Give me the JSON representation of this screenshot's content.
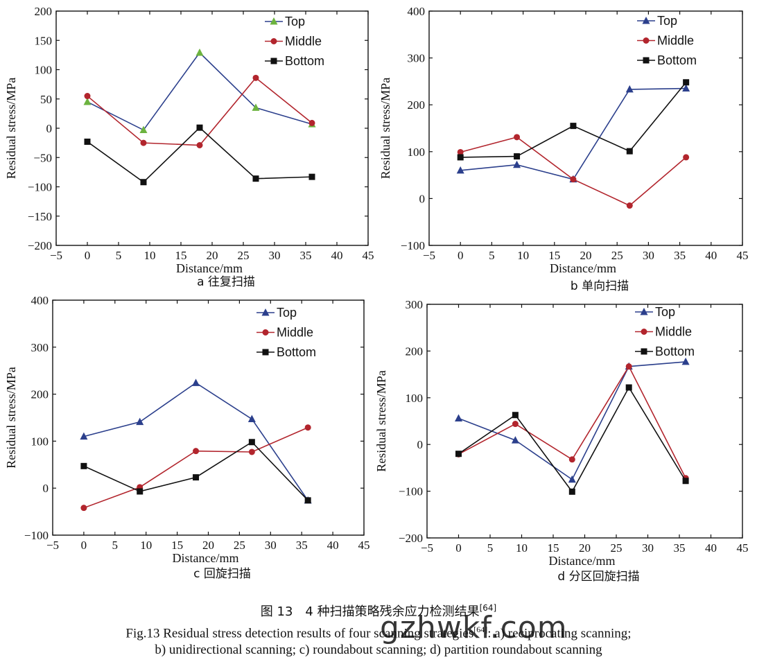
{
  "figure_caption_cn_main": "图 13　4 种扫描策略残余应力检测结果",
  "figure_caption_cn_ref": "[64]",
  "figure_caption_en_line1": "Fig.13 Residual stress detection results of four scanning strategies",
  "figure_caption_en_ref": "[64]",
  "figure_caption_en_line1_rest": ": a) reciprocating scanning;",
  "figure_caption_en_line2": "b) unidirectional scanning; c) roundabout scanning; d) partition roundabout scanning",
  "watermark": "gzhwkf.com",
  "colors": {
    "top": "#2b3f8c",
    "middle": "#b2252d",
    "bottom": "#111111",
    "top_a_marker": "#6cb33f"
  },
  "chart_data": [
    {
      "id": "a",
      "type": "line",
      "caption": "a  往复扫描",
      "xlabel": "Distance/mm",
      "ylabel": "Residual stress/MPa",
      "xlim": [
        -5,
        45
      ],
      "ylim": [
        -200,
        200
      ],
      "xticks": [
        -5,
        0,
        5,
        10,
        15,
        20,
        25,
        30,
        35,
        40,
        45
      ],
      "yticks": [
        -200,
        -150,
        -100,
        -50,
        0,
        50,
        100,
        150,
        200
      ],
      "legend_position": "top-right",
      "series": [
        {
          "name": "Top",
          "marker": "triangle",
          "color": "#2b3f8c",
          "marker_color": "#6cb33f",
          "x": [
            0,
            9,
            18,
            27,
            36
          ],
          "y": [
            45,
            -3,
            129,
            35,
            7
          ]
        },
        {
          "name": "Middle",
          "marker": "circle",
          "color": "#b2252d",
          "x": [
            0,
            9,
            18,
            27,
            36
          ],
          "y": [
            55,
            -25,
            -29,
            86,
            9
          ]
        },
        {
          "name": "Bottom",
          "marker": "square",
          "color": "#111111",
          "x": [
            0,
            9,
            18,
            27,
            36
          ],
          "y": [
            -23,
            -92,
            1,
            -86,
            -83
          ]
        }
      ]
    },
    {
      "id": "b",
      "type": "line",
      "caption": "b  单向扫描",
      "xlabel": "Distance/mm",
      "ylabel": "Residual stress/MPa",
      "xlim": [
        -5,
        45
      ],
      "ylim": [
        -100,
        400
      ],
      "xticks": [
        -5,
        0,
        5,
        10,
        15,
        20,
        25,
        30,
        35,
        40,
        45
      ],
      "yticks": [
        -100,
        0,
        100,
        200,
        300,
        400
      ],
      "legend_position": "top-right",
      "series": [
        {
          "name": "Top",
          "marker": "triangle",
          "color": "#2b3f8c",
          "marker_color": "#2b3f8c",
          "x": [
            0,
            9,
            18,
            27,
            36
          ],
          "y": [
            60,
            72,
            41,
            233,
            235
          ]
        },
        {
          "name": "Middle",
          "marker": "circle",
          "color": "#b2252d",
          "x": [
            0,
            9,
            18,
            27,
            36
          ],
          "y": [
            99,
            131,
            41,
            -15,
            88
          ]
        },
        {
          "name": "Bottom",
          "marker": "square",
          "color": "#111111",
          "x": [
            0,
            9,
            18,
            27,
            36
          ],
          "y": [
            88,
            90,
            155,
            101,
            248
          ]
        }
      ]
    },
    {
      "id": "c",
      "type": "line",
      "caption": "c  回旋扫描",
      "xlabel": "Distance/mm",
      "ylabel": "Residual stress/MPa",
      "xlim": [
        -5,
        45
      ],
      "ylim": [
        -100,
        400
      ],
      "xticks": [
        -5,
        0,
        5,
        10,
        15,
        20,
        25,
        30,
        35,
        40,
        45
      ],
      "yticks": [
        -100,
        0,
        100,
        200,
        300,
        400
      ],
      "legend_position": "top-right",
      "series": [
        {
          "name": "Top",
          "marker": "triangle",
          "color": "#2b3f8c",
          "marker_color": "#2b3f8c",
          "x": [
            0,
            9,
            18,
            27,
            36
          ],
          "y": [
            110,
            141,
            224,
            147,
            -26
          ]
        },
        {
          "name": "Middle",
          "marker": "circle",
          "color": "#b2252d",
          "x": [
            0,
            9,
            18,
            27,
            36
          ],
          "y": [
            -42,
            2,
            79,
            77,
            129
          ]
        },
        {
          "name": "Bottom",
          "marker": "square",
          "color": "#111111",
          "x": [
            0,
            9,
            18,
            27,
            36
          ],
          "y": [
            47,
            -7,
            23,
            98,
            -26
          ]
        }
      ]
    },
    {
      "id": "d",
      "type": "line",
      "caption": "d  分区回旋扫描",
      "xlabel": "Distance/mm",
      "ylabel": "Residual stress/MPa",
      "xlim": [
        -5,
        45
      ],
      "ylim": [
        -200,
        300
      ],
      "xticks": [
        -5,
        0,
        5,
        10,
        15,
        20,
        25,
        30,
        35,
        40,
        45
      ],
      "yticks": [
        -200,
        -100,
        0,
        100,
        200,
        300
      ],
      "legend_position": "top-right",
      "series": [
        {
          "name": "Top",
          "marker": "triangle",
          "color": "#2b3f8c",
          "marker_color": "#2b3f8c",
          "x": [
            0,
            9,
            18,
            27,
            36
          ],
          "y": [
            56,
            9,
            -75,
            167,
            177
          ]
        },
        {
          "name": "Middle",
          "marker": "circle",
          "color": "#b2252d",
          "x": [
            0,
            9,
            18,
            27,
            36
          ],
          "y": [
            -21,
            44,
            -32,
            167,
            -72
          ]
        },
        {
          "name": "Bottom",
          "marker": "square",
          "color": "#111111",
          "x": [
            0,
            9,
            18,
            27,
            36
          ],
          "y": [
            -20,
            63,
            -101,
            122,
            -78
          ]
        }
      ]
    }
  ]
}
